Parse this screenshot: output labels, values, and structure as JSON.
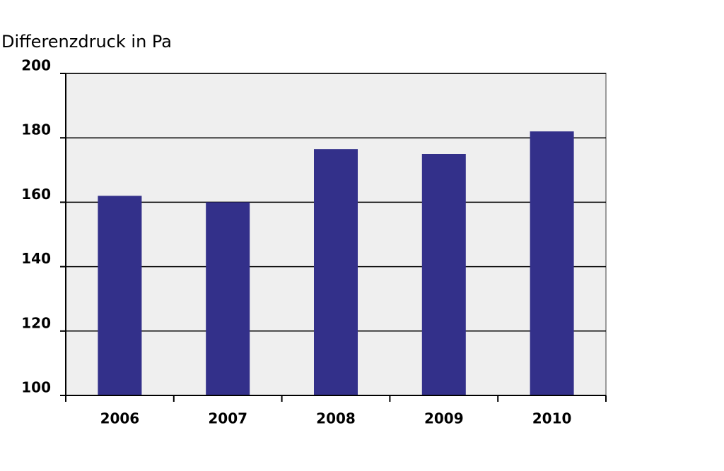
{
  "chart_data": {
    "type": "bar",
    "title": "Differenzdruck in Pa",
    "categories": [
      "2006",
      "2007",
      "2008",
      "2009",
      "2010"
    ],
    "values": [
      162,
      160,
      176.5,
      175,
      182
    ],
    "color": "#33308a",
    "ylim": [
      100,
      200
    ],
    "yticks": [
      100,
      120,
      140,
      160,
      180,
      200
    ],
    "grid": true
  }
}
